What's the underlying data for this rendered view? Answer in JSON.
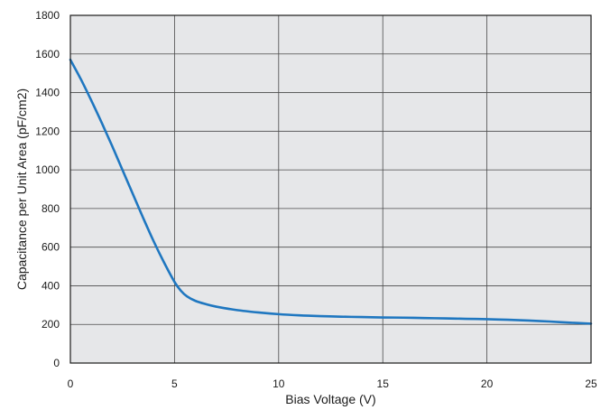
{
  "chart_data": {
    "type": "line",
    "title": "",
    "xlabel": "Bias Voltage (V)",
    "ylabel": "Capacitance per Unit Area (pF/cm2)",
    "xlim": [
      0,
      25
    ],
    "ylim": [
      0,
      1800
    ],
    "xticks": [
      0,
      5,
      10,
      15,
      20,
      25
    ],
    "yticks": [
      0,
      200,
      400,
      600,
      800,
      1000,
      1200,
      1400,
      1600,
      1800
    ],
    "grid": true,
    "legend": "none",
    "colors": {
      "plot_background": "#e6e7e9",
      "line": "#1f77c0",
      "grid": "#4a4a4a",
      "frame": "#1a1a1a"
    },
    "series": [
      {
        "x": [
          0,
          0.5,
          1,
          1.5,
          2,
          2.5,
          3,
          3.5,
          4,
          4.5,
          5,
          5.3,
          5.6,
          6,
          6.5,
          7,
          8,
          9,
          10,
          11,
          12,
          13,
          14,
          15,
          16,
          17,
          18,
          19,
          20,
          21,
          22,
          23,
          24,
          25
        ],
        "y": [
          1570,
          1470,
          1360,
          1245,
          1125,
          1000,
          875,
          750,
          630,
          520,
          420,
          375,
          345,
          322,
          305,
          292,
          274,
          262,
          253,
          247,
          243,
          240,
          238,
          236,
          235,
          233,
          231,
          229,
          227,
          224,
          220,
          215,
          209,
          204
        ]
      }
    ]
  }
}
